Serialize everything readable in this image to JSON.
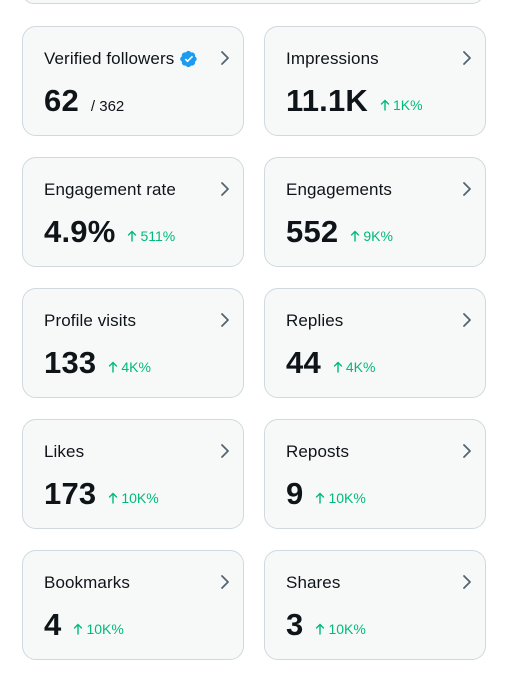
{
  "cards": [
    {
      "label": "Verified followers",
      "value": "62",
      "total": "/ 362",
      "change": "",
      "verified": true
    },
    {
      "label": "Impressions",
      "value": "11.1K",
      "total": "",
      "change": "1K%"
    },
    {
      "label": "Engagement rate",
      "value": "4.9%",
      "total": "",
      "change": "511%"
    },
    {
      "label": "Engagements",
      "value": "552",
      "total": "",
      "change": "9K%"
    },
    {
      "label": "Profile visits",
      "value": "133",
      "total": "",
      "change": "4K%"
    },
    {
      "label": "Replies",
      "value": "44",
      "total": "",
      "change": "4K%"
    },
    {
      "label": "Likes",
      "value": "173",
      "total": "",
      "change": "10K%"
    },
    {
      "label": "Reposts",
      "value": "9",
      "total": "",
      "change": "10K%"
    },
    {
      "label": "Bookmarks",
      "value": "4",
      "total": "",
      "change": "10K%"
    },
    {
      "label": "Shares",
      "value": "3",
      "total": "",
      "change": "10K%"
    }
  ],
  "colors": {
    "positive_change": "#00ba7c",
    "verified_badge": "#1d9bf0",
    "card_background": "#f7f9f9",
    "card_border": "#cfd9de"
  },
  "icons": {
    "chevron": "chevron-right-icon",
    "verified": "verified-badge-icon",
    "change": "up-arrow-icon"
  }
}
